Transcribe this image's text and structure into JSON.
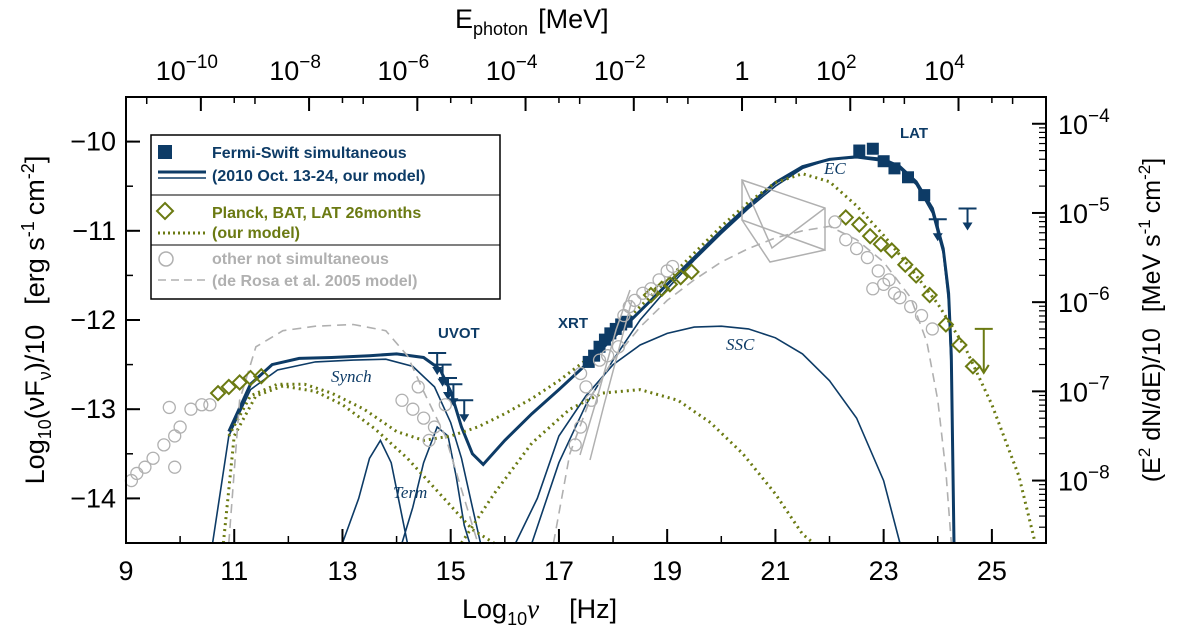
{
  "chart_data": {
    "type": "scatter",
    "xlabel": {
      "base": "Log",
      "sub": "10",
      "var": "ν",
      "unit": "[Hz]"
    },
    "ylabel": {
      "pre": "Log",
      "sub": "10",
      "mid": "(νF",
      "sub2": "ν",
      "post": ")/10",
      "unit": "[erg s",
      "sup1": "-1",
      "unit2": "cm",
      "sup2": "-2",
      "close": "]"
    },
    "top_axis_label": {
      "main": "E",
      "sub": "photon",
      "unit": "[MeV]"
    },
    "right_axis_label": {
      "pre": "(E",
      "sup": "2",
      "mid": " dN/dE)/10",
      "unit": "[MeV s",
      "sup1": "-1",
      "unit2": "cm",
      "sup2": "-2",
      "close": "]"
    },
    "xlim": [
      9,
      26
    ],
    "ylim": [
      -14.5,
      -9.5
    ],
    "x_ticks": [
      "9",
      "11",
      "13",
      "15",
      "17",
      "19",
      "21",
      "23",
      "25"
    ],
    "y_ticks": [
      "-10",
      "-11",
      "-12",
      "-13",
      "-14"
    ],
    "top_ticks": [
      {
        "base": "10",
        "exp": "-10",
        "logMeV": -10
      },
      {
        "base": "10",
        "exp": "-8",
        "logMeV": -8
      },
      {
        "base": "10",
        "exp": "-6",
        "logMeV": -6
      },
      {
        "base": "10",
        "exp": "-4",
        "logMeV": -4
      },
      {
        "base": "10",
        "exp": "-2",
        "logMeV": -2
      },
      {
        "base": "1",
        "exp": "",
        "logMeV": 0
      },
      {
        "base": "10",
        "exp": "2",
        "logMeV": 2
      },
      {
        "base": "10",
        "exp": "4",
        "logMeV": 4
      }
    ],
    "right_ticks": [
      {
        "base": "10",
        "exp": "-4",
        "logY": -9.8
      },
      {
        "base": "10",
        "exp": "-5",
        "logY": -10.8
      },
      {
        "base": "10",
        "exp": "-6",
        "logY": -11.8
      },
      {
        "base": "10",
        "exp": "-7",
        "logY": -12.8
      },
      {
        "base": "10",
        "exp": "-8",
        "logY": -13.8
      }
    ],
    "legend": [
      {
        "label": "Fermi-Swift simultaneous",
        "color": "#0d3b66"
      },
      {
        "label": "(2010 Oct. 13-24, our model)",
        "color": "#0d3b66"
      },
      {
        "label": "Planck, BAT, LAT 26months",
        "color": "#6b7a12"
      },
      {
        "label": "(our model)",
        "color": "#6b7a12"
      },
      {
        "label": "other not simultaneous",
        "color": "#b0b0b0"
      },
      {
        "label": "(de Rosa et al. 2005 model)",
        "color": "#b0b0b0"
      }
    ],
    "annotations": {
      "lat": "LAT",
      "uvot": "UVOT",
      "xrt": "XRT",
      "ec": "EC",
      "ssc": "SSC",
      "synch": "Synch",
      "term": "Term"
    },
    "colors": {
      "blue": "#0d3b66",
      "olive": "#6b7a12",
      "gray": "#b0b0b0"
    },
    "series": [
      {
        "name": "Fermi-Swift simultaneous",
        "marker": "square",
        "points": [
          [
            17.55,
            -12.47
          ],
          [
            17.65,
            -12.4
          ],
          [
            17.75,
            -12.3
          ],
          [
            17.85,
            -12.22
          ],
          [
            17.95,
            -12.15
          ],
          [
            18.05,
            -12.1
          ],
          [
            18.15,
            -12.05
          ],
          [
            18.25,
            -12.02
          ],
          [
            22.55,
            -10.1
          ],
          [
            22.8,
            -10.08
          ],
          [
            23.0,
            -10.22
          ],
          [
            23.2,
            -10.3
          ],
          [
            23.45,
            -10.4
          ],
          [
            23.75,
            -10.6
          ]
        ]
      },
      {
        "name": "UVOT upper limits",
        "marker": "downarrow",
        "points": [
          [
            14.75,
            -12.37
          ],
          [
            14.85,
            -12.5
          ],
          [
            14.95,
            -12.65
          ],
          [
            15.05,
            -12.72
          ],
          [
            15.25,
            -12.9
          ],
          [
            24.0,
            -10.87
          ],
          [
            24.55,
            -10.75
          ]
        ]
      },
      {
        "name": "Planck, BAT, LAT 26months",
        "marker": "diamond",
        "points": [
          [
            10.7,
            -12.82
          ],
          [
            10.9,
            -12.75
          ],
          [
            11.1,
            -12.7
          ],
          [
            11.3,
            -12.65
          ],
          [
            11.5,
            -12.63
          ],
          [
            18.7,
            -11.72
          ],
          [
            18.9,
            -11.65
          ],
          [
            19.05,
            -11.6
          ],
          [
            19.25,
            -11.52
          ],
          [
            19.45,
            -11.46
          ],
          [
            22.3,
            -10.85
          ],
          [
            22.55,
            -10.93
          ],
          [
            22.75,
            -11.06
          ],
          [
            22.95,
            -11.15
          ],
          [
            23.15,
            -11.22
          ],
          [
            23.4,
            -11.38
          ],
          [
            23.6,
            -11.5
          ],
          [
            23.85,
            -11.72
          ],
          [
            24.15,
            -12.05
          ],
          [
            24.4,
            -12.28
          ],
          [
            24.65,
            -12.52
          ]
        ]
      },
      {
        "name": "other not simultaneous",
        "marker": "circle",
        "points": [
          [
            9.1,
            -13.8
          ],
          [
            9.2,
            -13.72
          ],
          [
            9.35,
            -13.65
          ],
          [
            9.5,
            -13.55
          ],
          [
            9.7,
            -13.4
          ],
          [
            9.9,
            -13.3
          ],
          [
            10.0,
            -13.2
          ],
          [
            10.2,
            -13.0
          ],
          [
            10.4,
            -12.95
          ],
          [
            10.55,
            -12.95
          ],
          [
            9.9,
            -13.65
          ],
          [
            9.8,
            -12.98
          ],
          [
            14.1,
            -12.9
          ],
          [
            14.3,
            -13.0
          ],
          [
            14.5,
            -13.1
          ],
          [
            14.7,
            -13.2
          ],
          [
            14.9,
            -12.95
          ],
          [
            14.6,
            -13.35
          ],
          [
            14.4,
            -12.75
          ],
          [
            17.4,
            -12.6
          ],
          [
            17.5,
            -12.75
          ],
          [
            17.3,
            -13.4
          ],
          [
            17.4,
            -13.2
          ],
          [
            17.6,
            -12.9
          ],
          [
            17.75,
            -12.45
          ],
          [
            17.9,
            -12.4
          ],
          [
            18.1,
            -12.3
          ],
          [
            18.2,
            -11.95
          ],
          [
            18.3,
            -11.85
          ],
          [
            18.4,
            -11.78
          ],
          [
            18.55,
            -11.7
          ],
          [
            18.7,
            -11.65
          ],
          [
            18.85,
            -11.55
          ],
          [
            19.0,
            -11.45
          ],
          [
            19.1,
            -11.4
          ],
          [
            22.1,
            -10.9
          ],
          [
            22.3,
            -11.1
          ],
          [
            22.5,
            -11.2
          ],
          [
            22.7,
            -11.3
          ],
          [
            22.9,
            -11.45
          ],
          [
            23.1,
            -11.55
          ],
          [
            23.3,
            -11.75
          ],
          [
            23.5,
            -11.85
          ],
          [
            23.7,
            -11.95
          ],
          [
            22.8,
            -11.65
          ],
          [
            23.0,
            -11.6
          ],
          [
            23.2,
            -11.7
          ],
          [
            23.9,
            -12.1
          ]
        ]
      }
    ],
    "curves": {
      "blue_total": [
        [
          10.9,
          -13.25
        ],
        [
          11.3,
          -12.72
        ],
        [
          11.7,
          -12.5
        ],
        [
          12.2,
          -12.43
        ],
        [
          12.8,
          -12.42
        ],
        [
          13.5,
          -12.4
        ],
        [
          14.0,
          -12.38
        ],
        [
          14.5,
          -12.42
        ],
        [
          14.8,
          -12.55
        ],
        [
          15.0,
          -12.8
        ],
        [
          15.2,
          -13.2
        ],
        [
          15.4,
          -13.5
        ],
        [
          15.6,
          -13.62
        ],
        [
          16.0,
          -13.35
        ],
        [
          16.5,
          -13.05
        ],
        [
          17.0,
          -12.78
        ],
        [
          17.5,
          -12.5
        ],
        [
          18.0,
          -12.2
        ],
        [
          18.5,
          -11.9
        ],
        [
          19.0,
          -11.6
        ],
        [
          19.5,
          -11.3
        ],
        [
          20.0,
          -11.0
        ],
        [
          20.5,
          -10.72
        ],
        [
          21.0,
          -10.46
        ],
        [
          21.5,
          -10.28
        ],
        [
          22.0,
          -10.2
        ],
        [
          22.5,
          -10.17
        ],
        [
          23.0,
          -10.2
        ],
        [
          23.3,
          -10.28
        ],
        [
          23.6,
          -10.45
        ],
        [
          23.9,
          -10.75
        ],
        [
          24.1,
          -11.2
        ],
        [
          24.2,
          -11.7
        ],
        [
          24.25,
          -12.4
        ],
        [
          24.3,
          -14.6
        ]
      ],
      "blue_synch": [
        [
          10.6,
          -14.6
        ],
        [
          10.9,
          -13.3
        ],
        [
          11.3,
          -12.78
        ],
        [
          11.8,
          -12.56
        ],
        [
          12.5,
          -12.47
        ],
        [
          13.2,
          -12.45
        ],
        [
          13.8,
          -12.44
        ],
        [
          14.3,
          -12.52
        ],
        [
          14.7,
          -12.75
        ],
        [
          15.0,
          -13.15
        ],
        [
          15.2,
          -13.55
        ],
        [
          15.4,
          -14.1
        ],
        [
          15.55,
          -14.6
        ]
      ],
      "blue_term1": [
        [
          13.0,
          -14.6
        ],
        [
          13.3,
          -14.0
        ],
        [
          13.5,
          -13.55
        ],
        [
          13.7,
          -13.35
        ],
        [
          13.9,
          -13.6
        ],
        [
          14.1,
          -14.2
        ],
        [
          14.2,
          -14.6
        ]
      ],
      "blue_term2": [
        [
          14.1,
          -14.6
        ],
        [
          14.3,
          -14.1
        ],
        [
          14.5,
          -13.6
        ],
        [
          14.75,
          -13.2
        ],
        [
          14.95,
          -13.3
        ],
        [
          15.1,
          -13.75
        ],
        [
          15.25,
          -14.3
        ],
        [
          15.35,
          -14.6
        ]
      ],
      "blue_ssc": [
        [
          16.2,
          -14.6
        ],
        [
          16.6,
          -14.0
        ],
        [
          17.0,
          -13.3
        ],
        [
          17.5,
          -12.85
        ],
        [
          18.0,
          -12.5
        ],
        [
          18.5,
          -12.28
        ],
        [
          19.0,
          -12.15
        ],
        [
          19.5,
          -12.08
        ],
        [
          20.0,
          -12.07
        ],
        [
          20.5,
          -12.1
        ],
        [
          21.0,
          -12.2
        ],
        [
          21.5,
          -12.38
        ],
        [
          22.0,
          -12.68
        ],
        [
          22.5,
          -13.1
        ],
        [
          23.0,
          -13.8
        ],
        [
          23.3,
          -14.6
        ]
      ],
      "blue_ec": [
        [
          16.5,
          -14.6
        ],
        [
          17.0,
          -13.6
        ],
        [
          17.5,
          -12.95
        ],
        [
          18.0,
          -12.45
        ],
        [
          18.5,
          -12.0
        ],
        [
          19.0,
          -11.65
        ],
        [
          19.5,
          -11.33
        ],
        [
          20.0,
          -11.03
        ],
        [
          20.5,
          -10.75
        ],
        [
          21.0,
          -10.5
        ],
        [
          21.5,
          -10.3
        ],
        [
          22.0,
          -10.2
        ],
        [
          22.5,
          -10.18
        ],
        [
          23.0,
          -10.22
        ],
        [
          23.3,
          -10.3
        ],
        [
          23.6,
          -10.48
        ],
        [
          23.9,
          -10.8
        ],
        [
          24.1,
          -11.25
        ],
        [
          24.2,
          -11.8
        ],
        [
          24.25,
          -12.6
        ],
        [
          24.3,
          -14.6
        ]
      ],
      "olive_total": [
        [
          10.9,
          -13.3
        ],
        [
          11.3,
          -12.85
        ],
        [
          11.8,
          -12.72
        ],
        [
          12.3,
          -12.72
        ],
        [
          12.8,
          -12.82
        ],
        [
          13.4,
          -13.0
        ],
        [
          14.0,
          -13.25
        ],
        [
          14.5,
          -13.35
        ],
        [
          15.0,
          -13.3
        ],
        [
          15.5,
          -13.2
        ],
        [
          16.0,
          -13.05
        ],
        [
          16.5,
          -12.88
        ],
        [
          17.0,
          -12.68
        ],
        [
          17.5,
          -12.45
        ],
        [
          18.0,
          -12.15
        ],
        [
          18.5,
          -11.85
        ],
        [
          19.0,
          -11.55
        ],
        [
          19.5,
          -11.25
        ],
        [
          20.0,
          -10.95
        ],
        [
          20.5,
          -10.68
        ],
        [
          21.0,
          -10.46
        ],
        [
          21.5,
          -10.36
        ],
        [
          22.0,
          -10.45
        ],
        [
          22.5,
          -10.72
        ],
        [
          23.0,
          -11.05
        ],
        [
          23.5,
          -11.42
        ],
        [
          24.0,
          -11.82
        ],
        [
          24.5,
          -12.3
        ],
        [
          25.0,
          -12.95
        ],
        [
          25.5,
          -13.75
        ],
        [
          25.8,
          -14.6
        ]
      ],
      "olive_synch": [
        [
          10.8,
          -14.6
        ],
        [
          11.0,
          -13.3
        ],
        [
          11.4,
          -12.85
        ],
        [
          11.9,
          -12.74
        ],
        [
          12.5,
          -12.8
        ],
        [
          13.0,
          -12.95
        ],
        [
          13.6,
          -13.22
        ],
        [
          14.2,
          -13.55
        ],
        [
          14.8,
          -13.95
        ],
        [
          15.4,
          -14.35
        ],
        [
          15.8,
          -14.6
        ]
      ],
      "olive_ssc": [
        [
          15.2,
          -14.6
        ],
        [
          15.8,
          -13.95
        ],
        [
          16.5,
          -13.38
        ],
        [
          17.2,
          -13.0
        ],
        [
          17.8,
          -12.82
        ],
        [
          18.5,
          -12.78
        ],
        [
          19.2,
          -12.9
        ],
        [
          19.8,
          -13.15
        ],
        [
          20.4,
          -13.5
        ],
        [
          21.0,
          -13.95
        ],
        [
          21.5,
          -14.4
        ],
        [
          21.7,
          -14.6
        ]
      ],
      "gray_dashed": [
        [
          10.9,
          -14.5
        ],
        [
          11.1,
          -12.9
        ],
        [
          11.4,
          -12.3
        ],
        [
          11.9,
          -12.12
        ],
        [
          12.5,
          -12.07
        ],
        [
          13.2,
          -12.05
        ],
        [
          13.8,
          -12.12
        ],
        [
          14.2,
          -12.4
        ],
        [
          14.5,
          -12.8
        ],
        [
          14.9,
          -13.3
        ],
        [
          15.2,
          -13.9
        ],
        [
          15.5,
          -14.6
        ]
      ],
      "gray_dashed2": [
        [
          16.9,
          -14.6
        ],
        [
          17.2,
          -13.5
        ],
        [
          17.6,
          -12.85
        ],
        [
          18.0,
          -12.45
        ],
        [
          18.5,
          -12.08
        ],
        [
          19.0,
          -11.78
        ],
        [
          19.5,
          -11.55
        ],
        [
          20.0,
          -11.35
        ],
        [
          20.5,
          -11.2
        ],
        [
          21.0,
          -11.08
        ],
        [
          21.5,
          -11.0
        ],
        [
          22.0,
          -10.95
        ],
        [
          22.5,
          -11.1
        ],
        [
          23.0,
          -11.35
        ],
        [
          23.5,
          -11.75
        ],
        [
          23.8,
          -12.25
        ],
        [
          24.0,
          -12.9
        ],
        [
          24.15,
          -13.7
        ],
        [
          24.25,
          -14.6
        ]
      ]
    }
  }
}
